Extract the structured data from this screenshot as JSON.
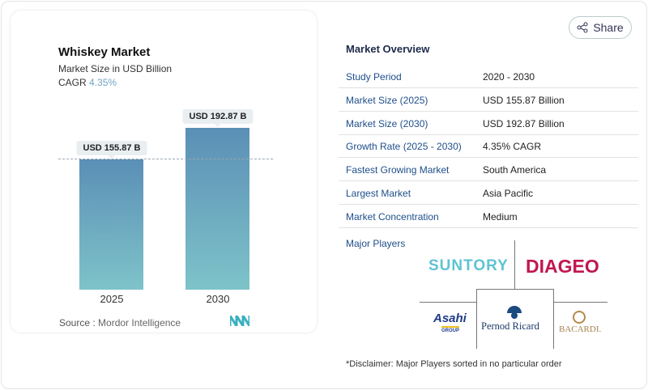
{
  "chart_data": {
    "type": "bar",
    "title": "Whiskey Market",
    "subtitle": "Market Size in USD Billion",
    "cagr_label": "CAGR",
    "cagr_value": "4.35%",
    "categories": [
      "2025",
      "2030"
    ],
    "values": [
      155.87,
      192.87
    ],
    "data_labels": [
      "USD 155.87 B",
      "USD 192.87 B"
    ],
    "ylim": [
      0,
      200
    ],
    "source_label": "Source :",
    "source": "Mordor Intelligence",
    "colors": {
      "bar_top": "#5b8fb6",
      "bar_bottom": "#7ec3c9"
    }
  },
  "share": {
    "label": "Share",
    "icon": "share-icon"
  },
  "overview": {
    "title": "Market Overview",
    "rows": [
      {
        "k": "Study Period",
        "v": "2020 - 2030"
      },
      {
        "k": "Market Size (2025)",
        "v": "USD 155.87 Billion"
      },
      {
        "k": "Market Size (2030)",
        "v": "USD 192.87 Billion"
      },
      {
        "k": "Growth Rate (2025 - 2030)",
        "v": "4.35% CAGR"
      },
      {
        "k": "Fastest Growing Market",
        "v": "South America"
      },
      {
        "k": "Largest Market",
        "v": "Asia Pacific"
      },
      {
        "k": "Market Concentration",
        "v": "Medium"
      }
    ]
  },
  "players": {
    "title": "Major Players",
    "logos": [
      "SUNTORY",
      "DIAGEO",
      "Asahi",
      "GROUP",
      "Pernod Ricard",
      "BACARDI."
    ]
  },
  "disclaimer": "*Disclaimer: Major Players sorted in no particular order"
}
